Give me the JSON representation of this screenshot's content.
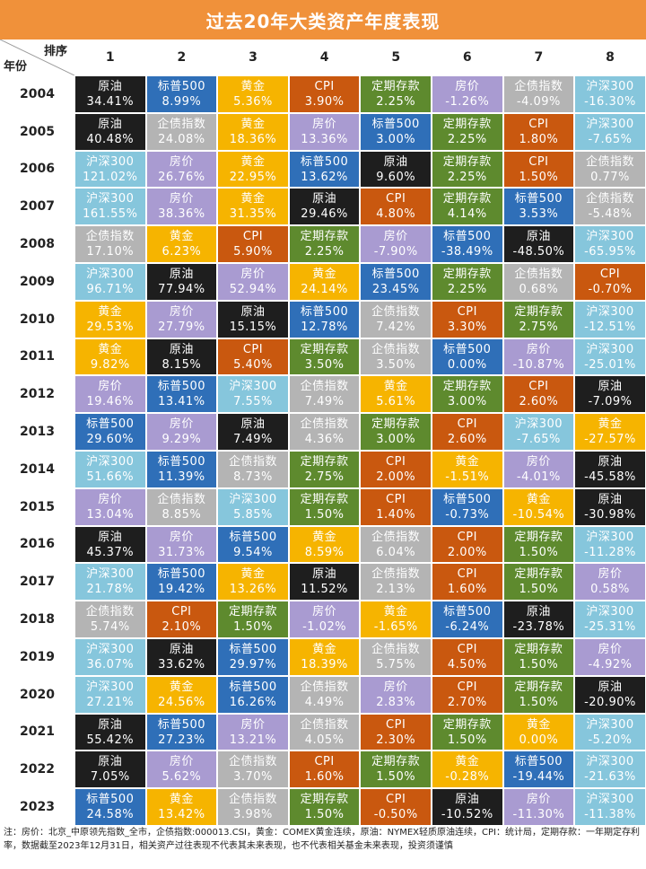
{
  "title": "过去20年大类资产年度表现",
  "header": {
    "rank_label": "排序",
    "year_label": "年份",
    "ranks": [
      "1",
      "2",
      "3",
      "4",
      "5",
      "6",
      "7",
      "8"
    ]
  },
  "colors": {
    "原油": "#1e1e1e",
    "标普500": "#2f6fb8",
    "黄金": "#f6b400",
    "CPI": "#c9580f",
    "定期存款": "#5e8a2e",
    "房价": "#a99bd1",
    "企债指数": "#b4b4b4",
    "沪深300": "#86c6dc"
  },
  "chart_data": {
    "type": "table",
    "title": "过去20年大类资产年度表现",
    "columns": [
      "1",
      "2",
      "3",
      "4",
      "5",
      "6",
      "7",
      "8"
    ],
    "rows": [
      {
        "year": "2004",
        "cells": [
          [
            "原油",
            "34.41%"
          ],
          [
            "标普500",
            "8.99%"
          ],
          [
            "黄金",
            "5.36%"
          ],
          [
            "CPI",
            "3.90%"
          ],
          [
            "定期存款",
            "2.25%"
          ],
          [
            "房价",
            "-1.26%"
          ],
          [
            "企债指数",
            "-4.09%"
          ],
          [
            "沪深300",
            "-16.30%"
          ]
        ]
      },
      {
        "year": "2005",
        "cells": [
          [
            "原油",
            "40.48%"
          ],
          [
            "企债指数",
            "24.08%"
          ],
          [
            "黄金",
            "18.36%"
          ],
          [
            "房价",
            "13.36%"
          ],
          [
            "标普500",
            "3.00%"
          ],
          [
            "定期存款",
            "2.25%"
          ],
          [
            "CPI",
            "1.80%"
          ],
          [
            "沪深300",
            "-7.65%"
          ]
        ]
      },
      {
        "year": "2006",
        "cells": [
          [
            "沪深300",
            "121.02%"
          ],
          [
            "房价",
            "26.76%"
          ],
          [
            "黄金",
            "22.95%"
          ],
          [
            "标普500",
            "13.62%"
          ],
          [
            "原油",
            "9.60%"
          ],
          [
            "定期存款",
            "2.25%"
          ],
          [
            "CPI",
            "1.50%"
          ],
          [
            "企债指数",
            "0.77%"
          ]
        ]
      },
      {
        "year": "2007",
        "cells": [
          [
            "沪深300",
            "161.55%"
          ],
          [
            "房价",
            "38.36%"
          ],
          [
            "黄金",
            "31.35%"
          ],
          [
            "原油",
            "29.46%"
          ],
          [
            "CPI",
            "4.80%"
          ],
          [
            "定期存款",
            "4.14%"
          ],
          [
            "标普500",
            "3.53%"
          ],
          [
            "企债指数",
            "-5.48%"
          ]
        ]
      },
      {
        "year": "2008",
        "cells": [
          [
            "企债指数",
            "17.10%"
          ],
          [
            "黄金",
            "6.23%"
          ],
          [
            "CPI",
            "5.90%"
          ],
          [
            "定期存款",
            "2.25%"
          ],
          [
            "房价",
            "-7.90%"
          ],
          [
            "标普500",
            "-38.49%"
          ],
          [
            "原油",
            "-48.50%"
          ],
          [
            "沪深300",
            "-65.95%"
          ]
        ]
      },
      {
        "year": "2009",
        "cells": [
          [
            "沪深300",
            "96.71%"
          ],
          [
            "原油",
            "77.94%"
          ],
          [
            "房价",
            "52.94%"
          ],
          [
            "黄金",
            "24.14%"
          ],
          [
            "标普500",
            "23.45%"
          ],
          [
            "定期存款",
            "2.25%"
          ],
          [
            "企债指数",
            "0.68%"
          ],
          [
            "CPI",
            "-0.70%"
          ]
        ]
      },
      {
        "year": "2010",
        "cells": [
          [
            "黄金",
            "29.53%"
          ],
          [
            "房价",
            "27.79%"
          ],
          [
            "原油",
            "15.15%"
          ],
          [
            "标普500",
            "12.78%"
          ],
          [
            "企债指数",
            "7.42%"
          ],
          [
            "CPI",
            "3.30%"
          ],
          [
            "定期存款",
            "2.75%"
          ],
          [
            "沪深300",
            "-12.51%"
          ]
        ]
      },
      {
        "year": "2011",
        "cells": [
          [
            "黄金",
            "9.82%"
          ],
          [
            "原油",
            "8.15%"
          ],
          [
            "CPI",
            "5.40%"
          ],
          [
            "定期存款",
            "3.50%"
          ],
          [
            "企债指数",
            "3.50%"
          ],
          [
            "标普500",
            "0.00%"
          ],
          [
            "房价",
            "-10.87%"
          ],
          [
            "沪深300",
            "-25.01%"
          ]
        ]
      },
      {
        "year": "2012",
        "cells": [
          [
            "房价",
            "19.46%"
          ],
          [
            "标普500",
            "13.41%"
          ],
          [
            "沪深300",
            "7.55%"
          ],
          [
            "企债指数",
            "7.49%"
          ],
          [
            "黄金",
            "5.61%"
          ],
          [
            "定期存款",
            "3.00%"
          ],
          [
            "CPI",
            "2.60%"
          ],
          [
            "原油",
            "-7.09%"
          ]
        ]
      },
      {
        "year": "2013",
        "cells": [
          [
            "标普500",
            "29.60%"
          ],
          [
            "房价",
            "9.29%"
          ],
          [
            "原油",
            "7.49%"
          ],
          [
            "企债指数",
            "4.36%"
          ],
          [
            "定期存款",
            "3.00%"
          ],
          [
            "CPI",
            "2.60%"
          ],
          [
            "沪深300",
            "-7.65%"
          ],
          [
            "黄金",
            "-27.57%"
          ]
        ]
      },
      {
        "year": "2014",
        "cells": [
          [
            "沪深300",
            "51.66%"
          ],
          [
            "标普500",
            "11.39%"
          ],
          [
            "企债指数",
            "8.73%"
          ],
          [
            "定期存款",
            "2.75%"
          ],
          [
            "CPI",
            "2.00%"
          ],
          [
            "黄金",
            "-1.51%"
          ],
          [
            "房价",
            "-4.01%"
          ],
          [
            "原油",
            "-45.58%"
          ]
        ]
      },
      {
        "year": "2015",
        "cells": [
          [
            "房价",
            "13.04%"
          ],
          [
            "企债指数",
            "8.85%"
          ],
          [
            "沪深300",
            "5.85%"
          ],
          [
            "定期存款",
            "1.50%"
          ],
          [
            "CPI",
            "1.40%"
          ],
          [
            "标普500",
            "-0.73%"
          ],
          [
            "黄金",
            "-10.54%"
          ],
          [
            "原油",
            "-30.98%"
          ]
        ]
      },
      {
        "year": "2016",
        "cells": [
          [
            "原油",
            "45.37%"
          ],
          [
            "房价",
            "31.73%"
          ],
          [
            "标普500",
            "9.54%"
          ],
          [
            "黄金",
            "8.59%"
          ],
          [
            "企债指数",
            "6.04%"
          ],
          [
            "CPI",
            "2.00%"
          ],
          [
            "定期存款",
            "1.50%"
          ],
          [
            "沪深300",
            "-11.28%"
          ]
        ]
      },
      {
        "year": "2017",
        "cells": [
          [
            "沪深300",
            "21.78%"
          ],
          [
            "标普500",
            "19.42%"
          ],
          [
            "黄金",
            "13.26%"
          ],
          [
            "原油",
            "11.52%"
          ],
          [
            "企债指数",
            "2.13%"
          ],
          [
            "CPI",
            "1.60%"
          ],
          [
            "定期存款",
            "1.50%"
          ],
          [
            "房价",
            "0.58%"
          ]
        ]
      },
      {
        "year": "2018",
        "cells": [
          [
            "企债指数",
            "5.74%"
          ],
          [
            "CPI",
            "2.10%"
          ],
          [
            "定期存款",
            "1.50%"
          ],
          [
            "房价",
            "-1.02%"
          ],
          [
            "黄金",
            "-1.65%"
          ],
          [
            "标普500",
            "-6.24%"
          ],
          [
            "原油",
            "-23.78%"
          ],
          [
            "沪深300",
            "-25.31%"
          ]
        ]
      },
      {
        "year": "2019",
        "cells": [
          [
            "沪深300",
            "36.07%"
          ],
          [
            "原油",
            "33.62%"
          ],
          [
            "标普500",
            "29.97%"
          ],
          [
            "黄金",
            "18.39%"
          ],
          [
            "企债指数",
            "5.75%"
          ],
          [
            "CPI",
            "4.50%"
          ],
          [
            "定期存款",
            "1.50%"
          ],
          [
            "房价",
            "-4.92%"
          ]
        ]
      },
      {
        "year": "2020",
        "cells": [
          [
            "沪深300",
            "27.21%"
          ],
          [
            "黄金",
            "24.56%"
          ],
          [
            "标普500",
            "16.26%"
          ],
          [
            "企债指数",
            "4.49%"
          ],
          [
            "房价",
            "2.83%"
          ],
          [
            "CPI",
            "2.70%"
          ],
          [
            "定期存款",
            "1.50%"
          ],
          [
            "原油",
            "-20.90%"
          ]
        ]
      },
      {
        "year": "2021",
        "cells": [
          [
            "原油",
            "55.42%"
          ],
          [
            "标普500",
            "27.23%"
          ],
          [
            "房价",
            "13.21%"
          ],
          [
            "企债指数",
            "4.05%"
          ],
          [
            "CPI",
            "2.30%"
          ],
          [
            "定期存款",
            "1.50%"
          ],
          [
            "黄金",
            "0.00%"
          ],
          [
            "沪深300",
            "-5.20%"
          ]
        ]
      },
      {
        "year": "2022",
        "cells": [
          [
            "原油",
            "7.05%"
          ],
          [
            "房价",
            "5.62%"
          ],
          [
            "企债指数",
            "3.70%"
          ],
          [
            "CPI",
            "1.60%"
          ],
          [
            "定期存款",
            "1.50%"
          ],
          [
            "黄金",
            "-0.28%"
          ],
          [
            "标普500",
            "-19.44%"
          ],
          [
            "沪深300",
            "-21.63%"
          ]
        ]
      },
      {
        "year": "2023",
        "cells": [
          [
            "标普500",
            "24.58%"
          ],
          [
            "黄金",
            "13.42%"
          ],
          [
            "企债指数",
            "3.98%"
          ],
          [
            "定期存款",
            "1.50%"
          ],
          [
            "CPI",
            "-0.50%"
          ],
          [
            "原油",
            "-10.52%"
          ],
          [
            "房价",
            "-11.30%"
          ],
          [
            "沪深300",
            "-11.38%"
          ]
        ]
      }
    ]
  },
  "note": "注：房价：北京_中原领先指数_全市，企债指数:000013.CSI，黄金：COMEX黄金连续，原油：NYMEX轻质原油连续，CPI：统计局，定期存款：一年期定存利率，数据截至2023年12月31日，相关资产过往表现不代表其未来表现，也不代表相关基金未来表现，投资须谨慎"
}
